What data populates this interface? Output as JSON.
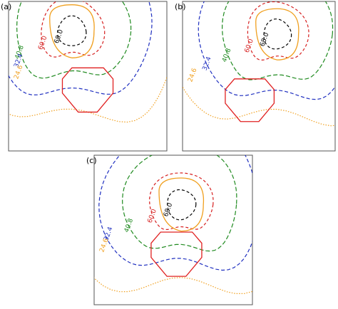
{
  "chart_data": [
    {
      "type": "contour",
      "panel": "(a)",
      "levels": [
        68,
        60,
        40.8,
        32.4,
        24.6
      ],
      "value_labels": [
        "68.0",
        "60.0",
        "40.8",
        "32.4",
        "24.6"
      ],
      "colors": [
        "#000000",
        "#d62020",
        "#1f8a1f",
        "#2030c0",
        "#f0a020"
      ]
    },
    {
      "type": "contour",
      "panel": "(b)",
      "levels": [
        68,
        60,
        40.8,
        32.4,
        24.6
      ],
      "value_labels": [
        "68.0",
        "60.0",
        "40.8",
        "32.4",
        "24.6"
      ],
      "colors": [
        "#000000",
        "#d62020",
        "#1f8a1f",
        "#2030c0",
        "#f0a020"
      ]
    },
    {
      "type": "contour",
      "panel": "(c)",
      "levels": [
        68,
        60,
        40.8,
        32.4,
        24.6
      ],
      "value_labels": [
        "68.0",
        "60.0",
        "40.8",
        "32.4",
        "24.6"
      ],
      "colors": [
        "#000000",
        "#d62020",
        "#1f8a1f",
        "#2030c0",
        "#f0a020"
      ]
    }
  ]
}
